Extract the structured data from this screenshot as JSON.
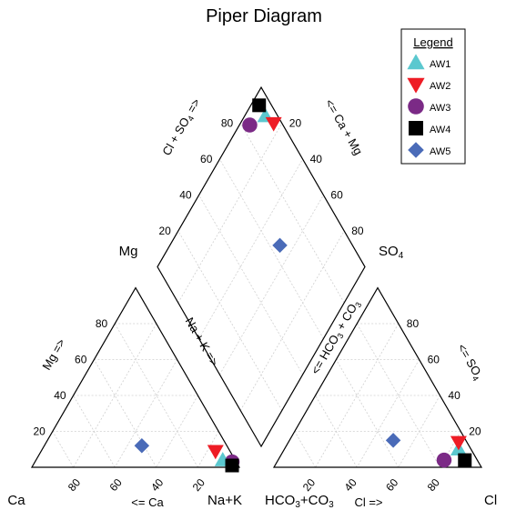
{
  "chart_data": {
    "type": "scatter",
    "title": "Piper Diagram",
    "corner_labels": {
      "ca": "Ca",
      "mg": "Mg",
      "na_k": "Na+K",
      "hco3_co3": "HCO3+CO3",
      "so4": "SO4",
      "cl": "Cl"
    },
    "axis_labels": {
      "mg_axis": "Mg =>",
      "ca_axis": "<= Ca",
      "na_k_axis": "Na + K =>",
      "cl_axis": "Cl =>",
      "so4_axis": "<= SO4",
      "hco3_axis": "<= HCO3 + CO3",
      "cl_so4_axis": "Cl + SO4 =>",
      "ca_mg_axis": "<= Ca + Mg"
    },
    "ticks": [
      "20",
      "40",
      "60",
      "80"
    ],
    "legend": {
      "title": "Legend",
      "placement": "top-right"
    },
    "series": [
      {
        "name": "AW1",
        "symbol": "triangle-up",
        "color": "#5bc8cf",
        "cation": {
          "Ca": 6,
          "Mg": 4,
          "NaK": 90
        },
        "anion": {
          "Cl": 84,
          "SO4": 10,
          "HCO3": 6
        }
      },
      {
        "name": "AW2",
        "symbol": "triangle-down",
        "color": "#ee1c25",
        "cation": {
          "Ca": 7,
          "Mg": 9,
          "NaK": 84
        },
        "anion": {
          "Cl": 82,
          "SO4": 14,
          "HCO3": 4
        }
      },
      {
        "name": "AW3",
        "symbol": "circle",
        "color": "#7b2a86",
        "cation": {
          "Ca": 2,
          "Mg": 3,
          "NaK": 95
        },
        "anion": {
          "Cl": 80,
          "SO4": 4,
          "HCO3": 16
        }
      },
      {
        "name": "AW4",
        "symbol": "square",
        "color": "#000000",
        "cation": {
          "Ca": 3,
          "Mg": 1,
          "NaK": 96
        },
        "anion": {
          "Cl": 90,
          "SO4": 4,
          "HCO3": 6
        }
      },
      {
        "name": "AW5",
        "symbol": "diamond",
        "color": "#4a6bb8",
        "cation": {
          "Ca": 41,
          "Mg": 12,
          "NaK": 47
        },
        "anion": {
          "Cl": 50,
          "SO4": 15,
          "HCO3": 35
        }
      }
    ]
  }
}
